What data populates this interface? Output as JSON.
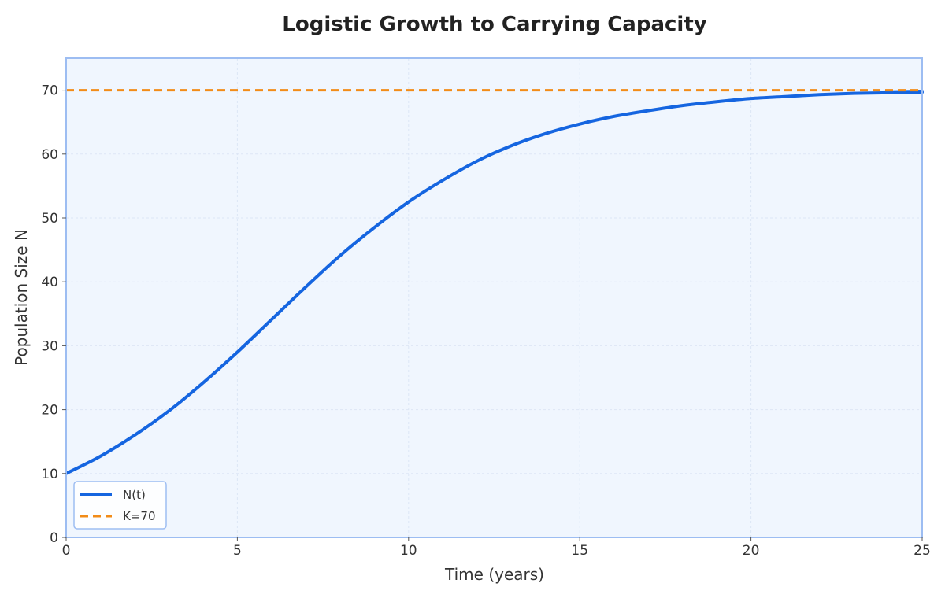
{
  "chart_data": {
    "type": "line",
    "title": "Logistic Growth to Carrying Capacity",
    "xlabel": "Time (years)",
    "ylabel": "Population Size N",
    "xlim": [
      0,
      25
    ],
    "ylim": [
      0,
      75
    ],
    "xticks": [
      "0",
      "5",
      "10",
      "15",
      "20",
      "25"
    ],
    "yticks": [
      "0",
      "10",
      "20",
      "30",
      "40",
      "50",
      "60",
      "70"
    ],
    "grid": true,
    "legend_position": "lower-left",
    "series": [
      {
        "name": "N(t)",
        "style": "solid",
        "color": "#1565e0",
        "x": [
          0,
          1,
          2,
          3,
          4,
          5,
          6,
          7,
          8,
          9,
          10,
          11,
          12,
          13,
          14,
          15,
          16,
          17,
          18,
          19,
          20,
          21,
          22,
          23,
          24,
          25
        ],
        "y": [
          10,
          12.7,
          16.0,
          19.8,
          24.2,
          29.0,
          34.1,
          39.2,
          44.1,
          48.5,
          52.5,
          55.9,
          58.9,
          61.3,
          63.2,
          64.7,
          65.9,
          66.8,
          67.6,
          68.2,
          68.7,
          69.0,
          69.3,
          69.5,
          69.6,
          69.7
        ]
      },
      {
        "name": "K=70",
        "style": "dashed",
        "color": "#f28c18",
        "x": [
          0,
          25
        ],
        "y": [
          70,
          70
        ]
      }
    ]
  },
  "colors": {
    "plot_background": "#f0f6fe",
    "plot_border": "#9dbdf2",
    "grid": "#dde6f5"
  }
}
